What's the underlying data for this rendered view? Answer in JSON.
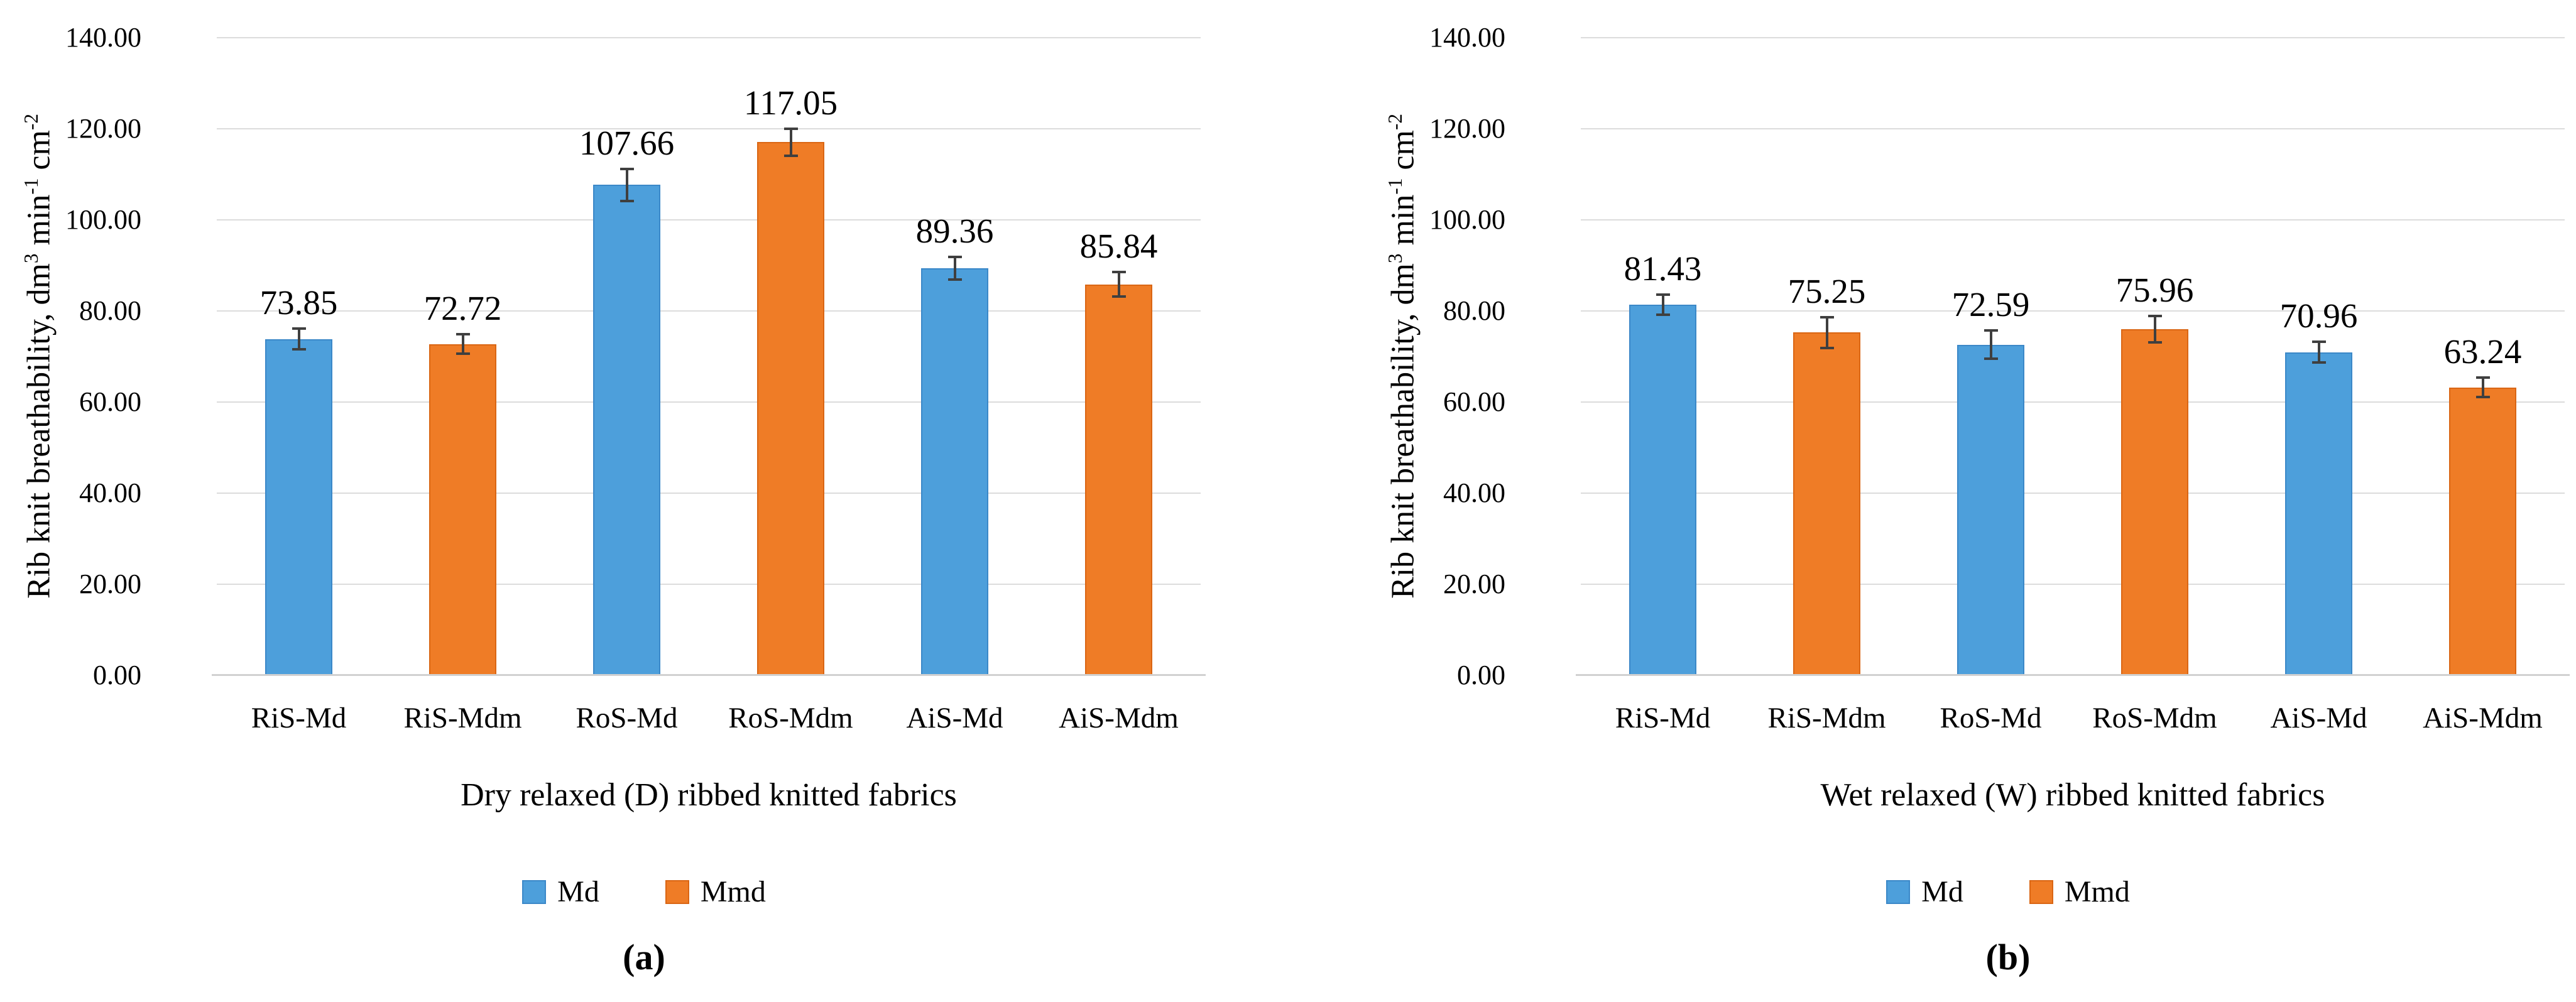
{
  "colors": {
    "md_blue": "#4D9FDB",
    "md_blue_border": "#3B88C8",
    "mmd_orange": "#EF7C26",
    "mmd_orange_border": "#DA6614",
    "gridline": "#DCDCDC",
    "axis_line": "#D1D1D1",
    "error_bar": "#3F3F3F",
    "text": "#000000",
    "background": "#FFFFFF"
  },
  "chart_data": [
    {
      "type": "bar",
      "panel_label": "(a)",
      "xlabel": "Dry relaxed (D) ribbed knitted fabrics",
      "ylabel": "Rib knit breathability, dm³ min⁻¹ cm⁻²",
      "ylabel_parts": [
        {
          "t": "Rib knit breathability, dm"
        },
        {
          "sup": "3"
        },
        {
          "t": " min"
        },
        {
          "sup": "-1"
        },
        {
          "t": " cm"
        },
        {
          "sup": "-2"
        }
      ],
      "categories": [
        "RiS-Md",
        "RiS-Mdm",
        "RoS-Md",
        "RoS-Mdm",
        "AiS-Md",
        "AiS-Mdm"
      ],
      "values": [
        73.85,
        72.72,
        107.66,
        117.05,
        89.36,
        85.84
      ],
      "value_labels": [
        "73.85",
        "72.72",
        "107.66",
        "117.05",
        "89.36",
        "85.84"
      ],
      "errors": [
        2.6,
        2.4,
        3.8,
        3.2,
        2.8,
        3.0
      ],
      "bar_series": [
        0,
        1,
        0,
        1,
        0,
        1
      ],
      "series": [
        {
          "name": "Md",
          "color": "#4D9FDB"
        },
        {
          "name": "Mmd",
          "color": "#EF7C26"
        }
      ],
      "ylim": [
        0,
        140
      ],
      "ytick_step": 20,
      "ytick_labels": [
        "0.00",
        "20.00",
        "40.00",
        "60.00",
        "80.00",
        "100.00",
        "120.00",
        "140.00"
      ],
      "grid": true,
      "legend_position": "bottom"
    },
    {
      "type": "bar",
      "panel_label": "(b)",
      "xlabel": "Wet relaxed (W) ribbed knitted fabrics",
      "ylabel": "Rib knit breathability, dm³ min⁻¹ cm⁻²",
      "ylabel_parts": [
        {
          "t": "Rib knit breathability, dm"
        },
        {
          "sup": "3"
        },
        {
          "t": " min"
        },
        {
          "sup": "-1"
        },
        {
          "t": " cm"
        },
        {
          "sup": "-2"
        }
      ],
      "categories": [
        "RiS-Md",
        "RiS-Mdm",
        "RoS-Md",
        "RoS-Mdm",
        "AiS-Md",
        "AiS-Mdm"
      ],
      "values": [
        81.43,
        75.25,
        72.59,
        75.96,
        70.96,
        63.24
      ],
      "value_labels": [
        "81.43",
        "75.25",
        "72.59",
        "75.96",
        "70.96",
        "63.24"
      ],
      "errors": [
        2.5,
        3.6,
        3.4,
        3.2,
        2.6,
        2.4
      ],
      "bar_series": [
        0,
        1,
        0,
        1,
        0,
        1
      ],
      "series": [
        {
          "name": "Md",
          "color": "#4D9FDB"
        },
        {
          "name": "Mmd",
          "color": "#EF7C26"
        }
      ],
      "ylim": [
        0,
        140
      ],
      "ytick_step": 20,
      "ytick_labels": [
        "0.00",
        "20.00",
        "40.00",
        "60.00",
        "80.00",
        "100.00",
        "120.00",
        "140.00"
      ],
      "grid": true,
      "legend_position": "bottom"
    }
  ]
}
